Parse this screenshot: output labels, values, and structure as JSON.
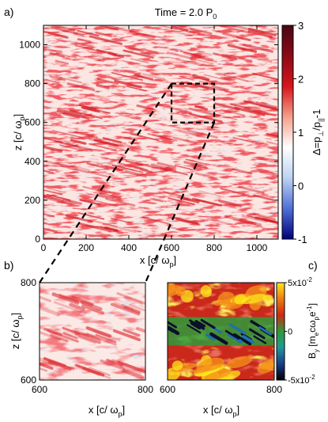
{
  "title": {
    "prefix": "Time = 2.0 P",
    "sub": "0"
  },
  "panel_labels": {
    "a": "a)",
    "b": "b)",
    "c": "c)"
  },
  "chart_data": [
    {
      "id": "a",
      "type": "heatmap",
      "xlabel_parts": [
        "x [c/ ",
        "ω",
        "p",
        "]"
      ],
      "ylabel_parts": [
        "z [c/ ",
        "ω",
        "p",
        "]"
      ],
      "xlim": [
        0,
        1100
      ],
      "ylim": [
        0,
        1100
      ],
      "xticks": [
        0,
        200,
        400,
        600,
        800,
        1000
      ],
      "yticks": [
        0,
        200,
        400,
        600,
        800,
        1000
      ],
      "zoom_box": {
        "x": [
          600,
          800
        ],
        "z": [
          600,
          800
        ]
      },
      "colorbar": {
        "label_parts": [
          "Δ=p",
          "⊥",
          "/p",
          "||",
          "-1"
        ],
        "range": [
          -1,
          3
        ],
        "ticks": [
          -1,
          0,
          1,
          2,
          3
        ],
        "colors": [
          "#00007a",
          "#4f6fd6",
          "#bcd2f2",
          "#ffffff",
          "#f4a08c",
          "#d8141c",
          "#8a0a16",
          "#4a0512"
        ]
      }
    },
    {
      "id": "b",
      "type": "heatmap",
      "xlabel_parts": [
        "x [c/ ",
        "ω",
        "p",
        "]"
      ],
      "ylabel_parts": [
        "z [c/ ",
        "ω",
        "p",
        "]"
      ],
      "xlim": [
        600,
        800
      ],
      "ylim": [
        600,
        800
      ],
      "xticks": [
        600,
        800
      ],
      "yticks": [
        600,
        800
      ]
    },
    {
      "id": "c",
      "type": "heatmap",
      "xlabel_parts": [
        "x [c/ ",
        "ω",
        "p",
        "]"
      ],
      "xlim": [
        600,
        800
      ],
      "ylim": [
        600,
        800
      ],
      "xticks": [
        600,
        800
      ],
      "colorbar": {
        "label_parts": [
          "B",
          "y",
          " [m",
          "e",
          "cω",
          "p",
          "e",
          "-1",
          "]"
        ],
        "range": [
          -0.05,
          0.05
        ],
        "ticks": [
          {
            "value": 0.05,
            "base": "5x10",
            "exp": "-2"
          },
          {
            "value": 0,
            "base": "0",
            "exp": ""
          },
          {
            "value": -0.05,
            "base": "-5x10",
            "exp": "-2"
          }
        ],
        "colors": [
          "#000000",
          "#1a3d8a",
          "#1f9a96",
          "#2e9a3a",
          "#cc2a14",
          "#f07a10",
          "#ffe81a"
        ]
      }
    }
  ]
}
